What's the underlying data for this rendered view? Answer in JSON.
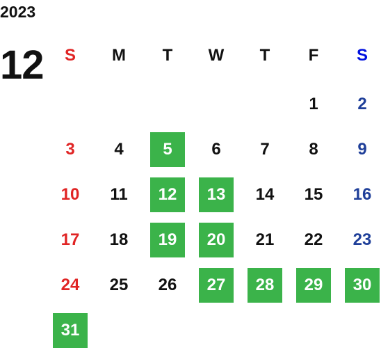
{
  "calendar": {
    "year": "2023",
    "month": "12",
    "weekdays": [
      "S",
      "M",
      "T",
      "W",
      "T",
      "F",
      "S"
    ],
    "weeks": [
      [
        null,
        null,
        null,
        null,
        null,
        {
          "day": 1,
          "highlight": false
        },
        {
          "day": 2,
          "highlight": false
        }
      ],
      [
        {
          "day": 3,
          "highlight": false
        },
        {
          "day": 4,
          "highlight": false
        },
        {
          "day": 5,
          "highlight": true
        },
        {
          "day": 6,
          "highlight": false
        },
        {
          "day": 7,
          "highlight": false
        },
        {
          "day": 8,
          "highlight": false
        },
        {
          "day": 9,
          "highlight": false
        }
      ],
      [
        {
          "day": 10,
          "highlight": false
        },
        {
          "day": 11,
          "highlight": false
        },
        {
          "day": 12,
          "highlight": true
        },
        {
          "day": 13,
          "highlight": true
        },
        {
          "day": 14,
          "highlight": false
        },
        {
          "day": 15,
          "highlight": false
        },
        {
          "day": 16,
          "highlight": false
        }
      ],
      [
        {
          "day": 17,
          "highlight": false
        },
        {
          "day": 18,
          "highlight": false
        },
        {
          "day": 19,
          "highlight": true
        },
        {
          "day": 20,
          "highlight": true
        },
        {
          "day": 21,
          "highlight": false
        },
        {
          "day": 22,
          "highlight": false
        },
        {
          "day": 23,
          "highlight": false
        }
      ],
      [
        {
          "day": 24,
          "highlight": false
        },
        {
          "day": 25,
          "highlight": false
        },
        {
          "day": 26,
          "highlight": false
        },
        {
          "day": 27,
          "highlight": true
        },
        {
          "day": 28,
          "highlight": true
        },
        {
          "day": 29,
          "highlight": true
        },
        {
          "day": 30,
          "highlight": true
        }
      ],
      [
        {
          "day": 31,
          "highlight": true
        },
        null,
        null,
        null,
        null,
        null,
        null
      ]
    ],
    "highlight_color": "#3bb34a",
    "sunday_color": "#e02424",
    "saturday_color": "#1f3f99",
    "saturday_header_color": "#0010e0"
  }
}
